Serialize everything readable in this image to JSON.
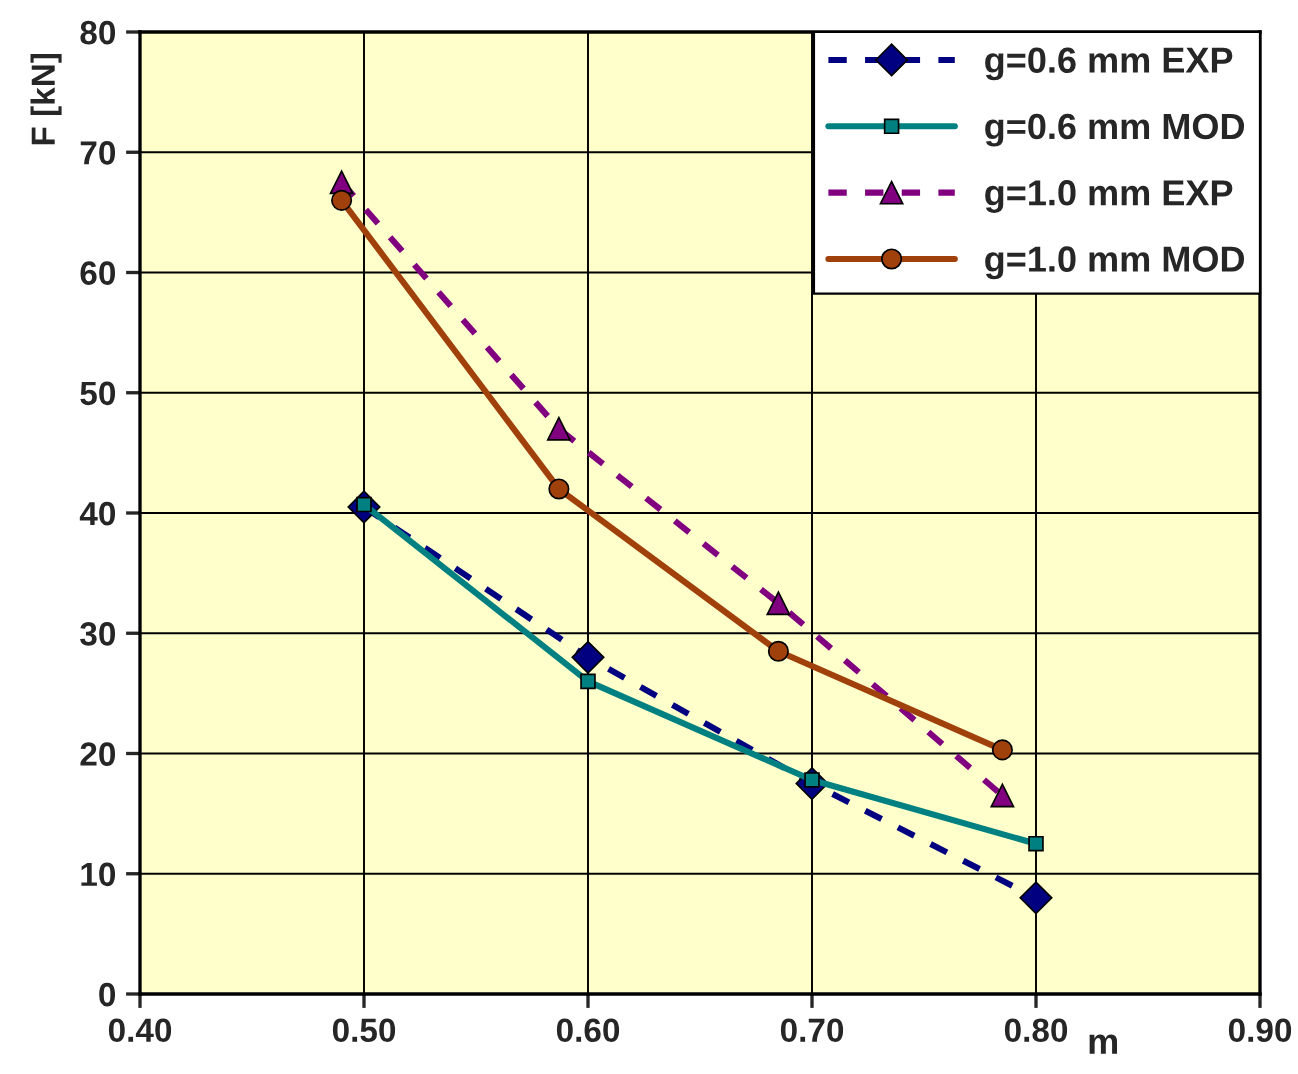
{
  "chart_data": {
    "type": "line",
    "xlabel": "m",
    "ylabel": "F [kN]",
    "xlim": [
      0.4,
      0.9
    ],
    "xticks": [
      {
        "value": 0.4,
        "label": "0.40"
      },
      {
        "value": 0.5,
        "label": "0.50"
      },
      {
        "value": 0.6,
        "label": "0.60"
      },
      {
        "value": 0.7,
        "label": "0.70"
      },
      {
        "value": 0.8,
        "label": "0.80"
      },
      {
        "value": 0.9,
        "label": "0.90"
      }
    ],
    "ylim": [
      0,
      80
    ],
    "yticks": [
      0,
      10,
      20,
      30,
      40,
      50,
      60,
      70,
      80
    ],
    "grid": true,
    "legend": "top right",
    "series": [
      {
        "name": "g=0.6 mm EXP",
        "color": "#000080",
        "marker": "diamond",
        "line_style": "dashed",
        "x": [
          0.5,
          0.6,
          0.7,
          0.8
        ],
        "values": [
          40.5,
          28,
          17.5,
          8
        ]
      },
      {
        "name": "g=0.6 mm MOD",
        "color": "#008080",
        "marker": "square",
        "line_style": "solid",
        "x": [
          0.5,
          0.6,
          0.7,
          0.8
        ],
        "values": [
          40.7,
          26,
          17.8,
          12.5
        ]
      },
      {
        "name": "g=1.0 mm EXP",
        "color": "#800080",
        "marker": "triangle",
        "line_style": "dashed",
        "x": [
          0.49,
          0.587,
          0.685,
          0.785
        ],
        "values": [
          67.5,
          47,
          32.5,
          16.5
        ]
      },
      {
        "name": "g=1.0 mm MOD",
        "color": "#a0400a",
        "marker": "circle",
        "line_style": "solid",
        "x": [
          0.49,
          0.587,
          0.685,
          0.785
        ],
        "values": [
          66,
          42,
          28.5,
          20.3
        ]
      }
    ]
  }
}
